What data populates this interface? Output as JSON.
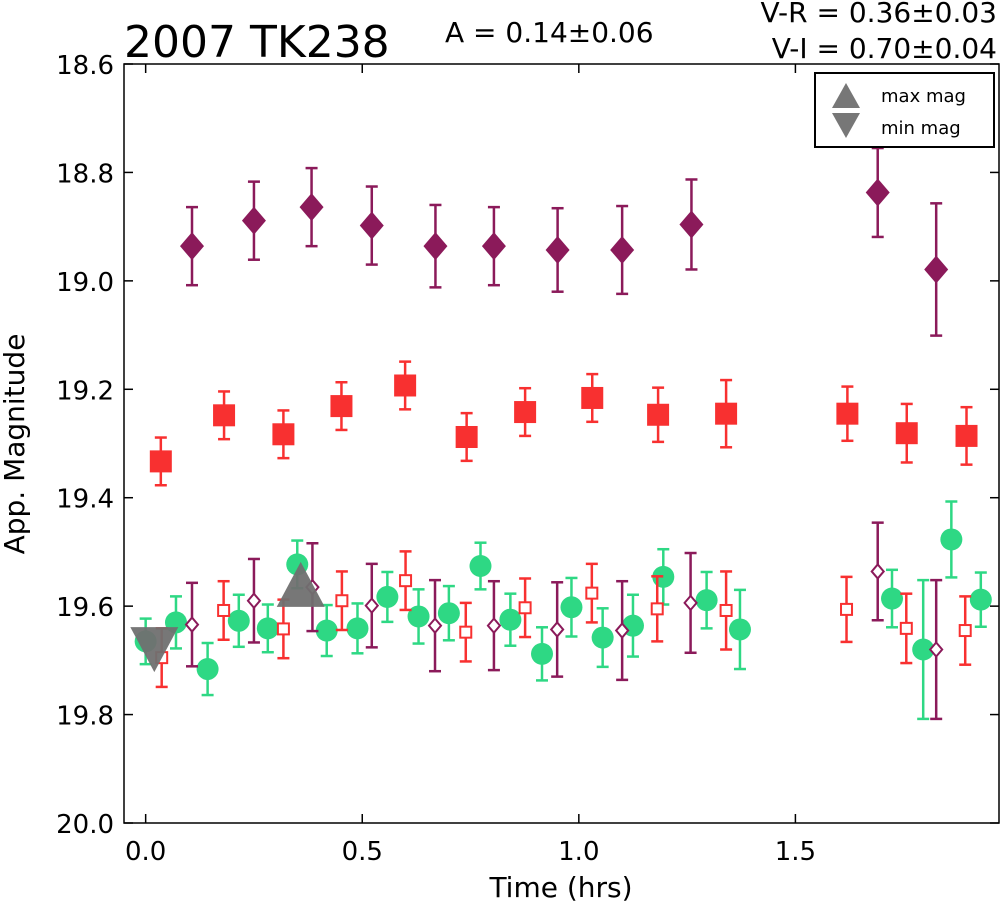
{
  "chart_data": {
    "type": "scatter",
    "title": "2007 TK238",
    "amplitude_text": "A  = 0.14±0.06",
    "color_text": [
      "V-R = 0.36±0.03",
      "V-I  = 0.70±0.04"
    ],
    "xlabel": "Time (hrs)",
    "ylabel": "App. Magnitude",
    "xlim": [
      -0.05,
      1.97
    ],
    "ylim": [
      20.0,
      18.6
    ],
    "y_inverted": true,
    "grid": false,
    "x_ticks": [
      0.0,
      0.5,
      1.0,
      1.5
    ],
    "x_tick_labels": [
      "0.0",
      "0.5",
      "1.0",
      "1.5"
    ],
    "y_ticks": [
      18.6,
      18.8,
      19.0,
      19.2,
      19.4,
      19.6,
      19.8,
      20.0
    ],
    "y_tick_labels": [
      "18.6",
      "18.8",
      "19.0",
      "19.2",
      "19.4",
      "19.6",
      "19.8",
      "20.0"
    ],
    "legend": {
      "placement": "top-right",
      "entries": [
        {
          "label": "max mag",
          "marker": "triangle-up"
        },
        {
          "label": "min mag",
          "marker": "triangle-down"
        }
      ]
    },
    "series": [
      {
        "marker": "diamond-filled",
        "color": "#8b1a5a",
        "x": [
          0.107,
          0.25,
          0.383,
          0.522,
          0.669,
          0.804,
          0.951,
          1.1,
          1.26,
          1.69,
          1.825
        ],
        "y": [
          18.936,
          18.889,
          18.864,
          18.898,
          18.936,
          18.936,
          18.943,
          18.943,
          18.896,
          18.837,
          18.979
        ],
        "err": [
          0.072,
          0.072,
          0.072,
          0.072,
          0.076,
          0.072,
          0.077,
          0.081,
          0.083,
          0.082,
          0.122
        ]
      },
      {
        "marker": "square-filled",
        "color": "#f83030",
        "x": [
          0.035,
          0.181,
          0.318,
          0.452,
          0.599,
          0.741,
          0.876,
          1.031,
          1.183,
          1.34,
          1.62,
          1.757,
          1.895
        ],
        "y": [
          19.333,
          19.248,
          19.283,
          19.231,
          19.193,
          19.288,
          19.242,
          19.216,
          19.247,
          19.245,
          19.245,
          19.281,
          19.286
        ],
        "err": [
          0.044,
          0.044,
          0.044,
          0.044,
          0.044,
          0.044,
          0.044,
          0.044,
          0.05,
          0.062,
          0.05,
          0.054,
          0.053
        ]
      },
      {
        "marker": "circle-filled",
        "color": "#2ed884",
        "x": [
          0.0,
          0.07,
          0.143,
          0.215,
          0.282,
          0.35,
          0.418,
          0.489,
          0.558,
          0.63,
          0.7,
          0.773,
          0.842,
          0.915,
          0.983,
          1.055,
          1.125,
          1.195,
          1.295,
          1.372,
          1.723,
          1.795,
          1.86,
          1.928
        ],
        "y": [
          19.665,
          19.63,
          19.716,
          19.627,
          19.641,
          19.523,
          19.645,
          19.641,
          19.583,
          19.619,
          19.613,
          19.526,
          19.625,
          19.688,
          19.602,
          19.658,
          19.636,
          19.546,
          19.589,
          19.643,
          19.586,
          19.68,
          19.477,
          19.588
        ],
        "err": [
          0.042,
          0.048,
          0.048,
          0.048,
          0.044,
          0.044,
          0.047,
          0.046,
          0.046,
          0.05,
          0.05,
          0.043,
          0.048,
          0.049,
          0.054,
          0.054,
          0.057,
          0.051,
          0.052,
          0.073,
          0.053,
          0.128,
          0.07,
          0.05
        ]
      },
      {
        "marker": "square-open",
        "color": "#f83030",
        "x": [
          0.037,
          0.18,
          0.318,
          0.453,
          0.6,
          0.739,
          0.876,
          1.03,
          1.181,
          1.34,
          1.618,
          1.756,
          1.892
        ],
        "y": [
          19.695,
          19.608,
          19.642,
          19.59,
          19.553,
          19.648,
          19.603,
          19.576,
          19.605,
          19.608,
          19.606,
          19.641,
          19.645
        ],
        "err": [
          0.054,
          0.054,
          0.054,
          0.054,
          0.054,
          0.054,
          0.054,
          0.054,
          0.06,
          0.072,
          0.06,
          0.064,
          0.063
        ]
      },
      {
        "marker": "diamond-open",
        "color": "#8b1a5a",
        "x": [
          0.107,
          0.25,
          0.385,
          0.522,
          0.668,
          0.804,
          0.95,
          1.1,
          1.258,
          1.69,
          1.825
        ],
        "y": [
          19.634,
          19.59,
          19.565,
          19.599,
          19.636,
          19.636,
          19.643,
          19.645,
          19.594,
          19.536,
          19.68
        ],
        "err": [
          0.077,
          0.077,
          0.081,
          0.077,
          0.084,
          0.082,
          0.087,
          0.091,
          0.092,
          0.09,
          0.128
        ]
      },
      {
        "marker": "triangle-up",
        "color": "#707070",
        "x": [
          0.358
        ],
        "y": [
          19.57
        ],
        "err": []
      },
      {
        "marker": "triangle-down",
        "color": "#707070",
        "x": [
          0.02
        ],
        "y": [
          19.67
        ],
        "err": []
      }
    ]
  }
}
